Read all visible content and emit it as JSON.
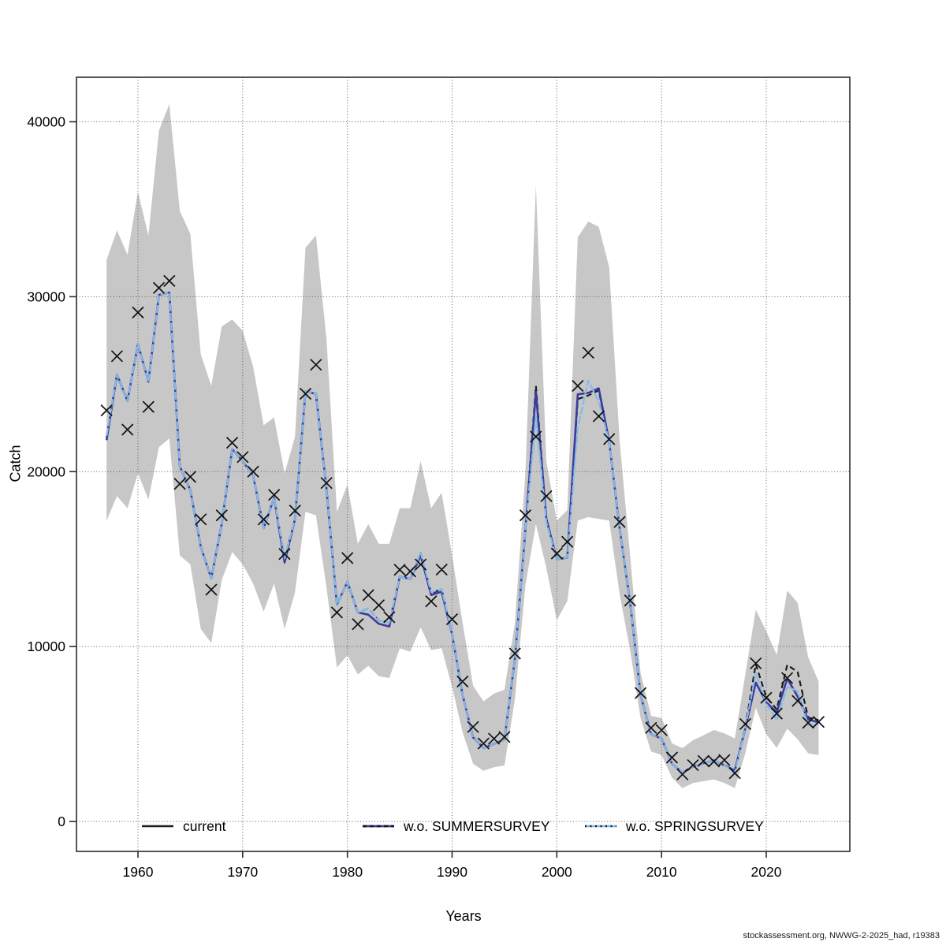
{
  "figure": {
    "xlabel": "Years",
    "ylabel": "Catch",
    "footer": "stockassessment.org, NWWG-2-2025_had, r19383"
  },
  "legend": [
    {
      "label": "current"
    },
    {
      "label": "w.o. SUMMERSURVEY"
    },
    {
      "label": "w.o. SPRINGSURVEY"
    }
  ],
  "colors": {
    "band": "#c7c7c7",
    "current": "#1c1c1c",
    "summer": "#3b3b9e",
    "spring": "#84bbe8",
    "grid": "#5c5c5c",
    "box": "#2b2b2b",
    "marker": "#101010"
  },
  "chart_data": {
    "type": "line",
    "title": "",
    "xlabel": "Years",
    "ylabel": "Catch",
    "xlim": [
      1954,
      2028
    ],
    "ylim": [
      0,
      42500
    ],
    "x_ticks": [
      1960,
      1970,
      1980,
      1990,
      2000,
      2010,
      2020
    ],
    "y_ticks": [
      0,
      10000,
      20000,
      30000,
      40000
    ],
    "grid": true,
    "legend_position": "bottom-inside",
    "years": [
      1957,
      1958,
      1959,
      1960,
      1961,
      1962,
      1963,
      1964,
      1965,
      1966,
      1967,
      1968,
      1969,
      1970,
      1971,
      1972,
      1973,
      1974,
      1975,
      1976,
      1977,
      1978,
      1979,
      1980,
      1981,
      1982,
      1983,
      1984,
      1985,
      1986,
      1987,
      1988,
      1989,
      1990,
      1991,
      1992,
      1993,
      1994,
      1995,
      1996,
      1997,
      1998,
      1999,
      2000,
      2001,
      2002,
      2003,
      2004,
      2005,
      2006,
      2007,
      2008,
      2009,
      2010,
      2011,
      2012,
      2013,
      2014,
      2015,
      2016,
      2017,
      2018,
      2019,
      2020,
      2021,
      2022,
      2023,
      2024,
      2025
    ],
    "series": [
      {
        "name": "current",
        "style": "dashed-black",
        "values": [
          22000,
          25550,
          24050,
          27280,
          25140,
          30100,
          30240,
          20300,
          18950,
          15700,
          13900,
          17000,
          21280,
          20600,
          19770,
          16770,
          18500,
          15040,
          17290,
          24580,
          24450,
          19030,
          12400,
          13700,
          11950,
          12180,
          11500,
          11360,
          14000,
          13860,
          15350,
          13050,
          13280,
          10700,
          7240,
          4810,
          4200,
          4440,
          4680,
          9300,
          16700,
          24900,
          17300,
          15000,
          15080,
          24150,
          24350,
          24650,
          21730,
          16760,
          12515,
          7225,
          4980,
          4740,
          3300,
          2785,
          3140,
          3330,
          3490,
          3210,
          2905,
          5390,
          8990,
          7115,
          6410,
          8950,
          8540,
          5940,
          5790
        ]
      },
      {
        "name": "w.o. SUMMERSURVEY",
        "style": "solid-navy",
        "values": [
          21800,
          25550,
          24050,
          27280,
          25140,
          30100,
          30240,
          20300,
          18950,
          15700,
          13900,
          17000,
          21280,
          20600,
          19770,
          16770,
          18500,
          14800,
          17290,
          24580,
          24450,
          19030,
          12400,
          13700,
          11950,
          11820,
          11300,
          11140,
          14000,
          13860,
          15200,
          12950,
          13140,
          10700,
          7240,
          4810,
          4200,
          4440,
          4680,
          9300,
          16700,
          24550,
          17300,
          15000,
          15080,
          24420,
          24500,
          24760,
          21730,
          16760,
          12515,
          7225,
          4980,
          4740,
          3300,
          2785,
          3140,
          3330,
          3490,
          3210,
          2905,
          5310,
          7940,
          6815,
          6240,
          8170,
          7145,
          5835,
          5660
        ]
      },
      {
        "name": "w.o. SPRINGSURVEY",
        "style": "dotted-lightblue",
        "values": [
          22040,
          25550,
          24050,
          27280,
          25140,
          30100,
          30240,
          20300,
          18950,
          15700,
          13900,
          17000,
          21280,
          20600,
          19770,
          16770,
          18500,
          15040,
          17290,
          24580,
          24450,
          19030,
          12400,
          13700,
          11950,
          12180,
          11500,
          11360,
          14000,
          13860,
          15350,
          13110,
          13300,
          10700,
          7240,
          4810,
          4200,
          4440,
          4680,
          9300,
          16700,
          23170,
          17100,
          15000,
          15080,
          22500,
          25210,
          24000,
          21730,
          16760,
          12515,
          7225,
          4980,
          4740,
          3300,
          2785,
          3140,
          3330,
          3490,
          3210,
          2785,
          5350,
          8470,
          6740,
          5790,
          7690,
          7460,
          5490,
          5580
        ]
      }
    ],
    "observed_catch_markers": {
      "symbol": "x",
      "values": [
        23500,
        26600,
        22400,
        29100,
        23700,
        30500,
        30900,
        19300,
        19700,
        17270,
        13250,
        17500,
        21650,
        20830,
        20000,
        17270,
        18670,
        15290,
        17770,
        24450,
        26110,
        19350,
        11950,
        15060,
        11280,
        12940,
        12360,
        11680,
        14390,
        14300,
        14690,
        12585,
        14400,
        11560,
        8000,
        5400,
        4460,
        4730,
        4830,
        9600,
        17500,
        22000,
        18600,
        15320,
        15990,
        24900,
        26800,
        23170,
        21860,
        17120,
        12630,
        7340,
        5350,
        5220,
        3650,
        2690,
        3220,
        3460,
        3430,
        3510,
        2760,
        5570,
        9040,
        7070,
        6170,
        8200,
        6890,
        5640,
        5690
      ]
    },
    "confidence_band": {
      "upper": [
        32100,
        33800,
        32400,
        36000,
        33500,
        39500,
        41000,
        34900,
        33600,
        26700,
        24900,
        28300,
        28700,
        28050,
        26000,
        22650,
        23100,
        19900,
        22000,
        32800,
        33500,
        27600,
        17700,
        19260,
        15870,
        17000,
        15870,
        15870,
        17900,
        17900,
        20600,
        17900,
        18800,
        15200,
        11360,
        7760,
        6860,
        7310,
        7530,
        11360,
        19930,
        36400,
        20610,
        17200,
        17800,
        33400,
        34300,
        34000,
        31700,
        21740,
        15200,
        8480,
        6040,
        5910,
        4460,
        4190,
        4640,
        4920,
        5230,
        5040,
        4740,
        8390,
        12100,
        10870,
        9520,
        13200,
        12500,
        9400,
        8000
      ],
      "lower": [
        17200,
        18600,
        17900,
        19900,
        18400,
        21400,
        21900,
        15200,
        14700,
        11000,
        10200,
        13800,
        15400,
        14700,
        13600,
        12000,
        13600,
        11000,
        13100,
        17700,
        17500,
        13400,
        8800,
        9500,
        8400,
        8900,
        8300,
        8200,
        9900,
        9700,
        11100,
        9800,
        9900,
        7700,
        5100,
        3300,
        2900,
        3100,
        3200,
        7000,
        13500,
        17000,
        14500,
        11500,
        12600,
        17200,
        17400,
        17300,
        17200,
        13000,
        9800,
        5900,
        4000,
        3800,
        2500,
        1900,
        2200,
        2300,
        2400,
        2200,
        1900,
        3900,
        6500,
        5000,
        4200,
        5300,
        4700,
        3900,
        3800
      ]
    }
  }
}
